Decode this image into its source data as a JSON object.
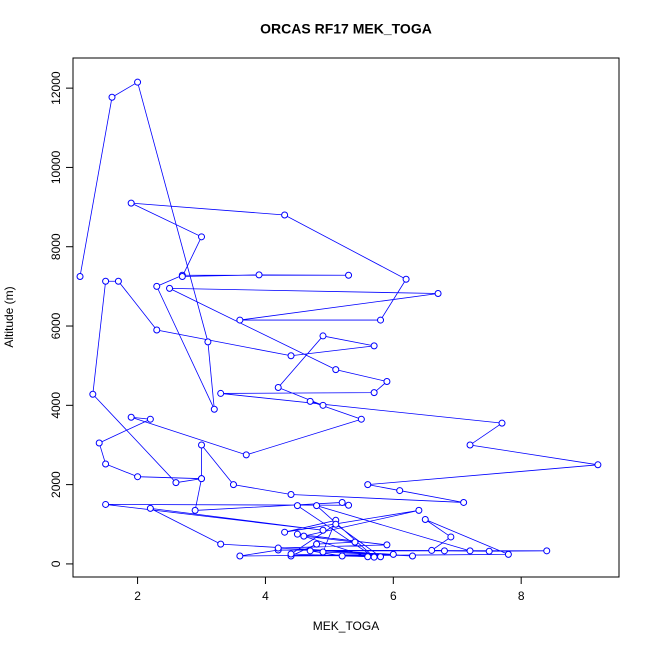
{
  "chart_data": {
    "type": "line",
    "title": "ORCAS RF17 MEK_TOGA",
    "x_label": "MEK_TOGA",
    "y_label": "Altitude (m)",
    "series": [
      {
        "name": "MEK_TOGA",
        "color": "#0000ff",
        "x": [
          1.1,
          1.6,
          2.0,
          3.1,
          3.2,
          2.3,
          2.7,
          5.3,
          3.9,
          2.7,
          3.0,
          1.9,
          4.3,
          6.2,
          5.8,
          3.6,
          6.7,
          2.5,
          5.1,
          5.9,
          5.7,
          3.3,
          7.7,
          7.2,
          9.2,
          5.6,
          6.1,
          7.1,
          4.4,
          3.5,
          3.0,
          3.0,
          2.6,
          1.3,
          1.5,
          1.7,
          2.3,
          4.4,
          5.7,
          4.9,
          4.2,
          4.9,
          4.7,
          5.5,
          3.7,
          1.9,
          2.2,
          1.4,
          1.5,
          2.0,
          3.0,
          2.9,
          5.2,
          5.3,
          1.5,
          4.9,
          2.2,
          3.3,
          6.0,
          3.6,
          4.2,
          8.4,
          7.5,
          6.8,
          6.6,
          6.9,
          6.5,
          7.8,
          4.4,
          4.8,
          5.4,
          4.6,
          6.4,
          4.3,
          5.1,
          4.9,
          6.3,
          4.2,
          5.9,
          4.5,
          5.6,
          4.4,
          5.1,
          5.8,
          5.2,
          4.7,
          7.2,
          4.8,
          5.7,
          4.5
        ],
        "values": [
          7250,
          11770,
          12150,
          5600,
          3900,
          7000,
          7280,
          7280,
          7290,
          7250,
          8250,
          9100,
          8800,
          7180,
          6150,
          6150,
          6820,
          6950,
          4900,
          4600,
          4320,
          4300,
          3550,
          3000,
          2500,
          2000,
          1850,
          1550,
          1750,
          2000,
          3000,
          2150,
          2050,
          4280,
          7130,
          7130,
          5900,
          5250,
          5500,
          5750,
          4450,
          4000,
          4100,
          3650,
          2750,
          3700,
          3650,
          3050,
          2520,
          2200,
          2150,
          1350,
          1550,
          1480,
          1500,
          850,
          1400,
          500,
          240,
          200,
          350,
          330,
          320,
          330,
          340,
          680,
          1120,
          240,
          200,
          500,
          550,
          700,
          1350,
          800,
          1100,
          300,
          200,
          400,
          480,
          750,
          180,
          250,
          1000,
          180,
          200,
          330,
          330,
          1470,
          170,
          1470
        ]
      }
    ],
    "xlim": [
      0.99,
      9.53
    ],
    "ylim": [
      -330,
      12760
    ],
    "xticks": [
      2,
      4,
      6,
      8
    ],
    "yticks": [
      0,
      2000,
      4000,
      6000,
      8000,
      10000,
      12000
    ]
  }
}
